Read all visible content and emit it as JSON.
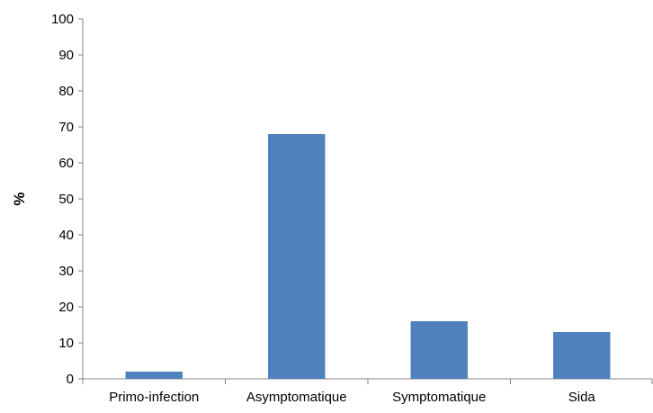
{
  "chart_data": {
    "type": "bar",
    "title": "",
    "xlabel": "",
    "ylabel": "%",
    "categories": [
      "Primo-infection",
      "Asymptomatique",
      "Symptomatique",
      "Sida"
    ],
    "values": [
      2,
      68,
      16,
      13
    ],
    "ylim": [
      0,
      100
    ],
    "yticks": [
      0,
      10,
      20,
      30,
      40,
      50,
      60,
      70,
      80,
      90,
      100
    ],
    "grid": false,
    "legend": "none",
    "bar_color": "#4F81BD",
    "axis_color": "#868686"
  }
}
